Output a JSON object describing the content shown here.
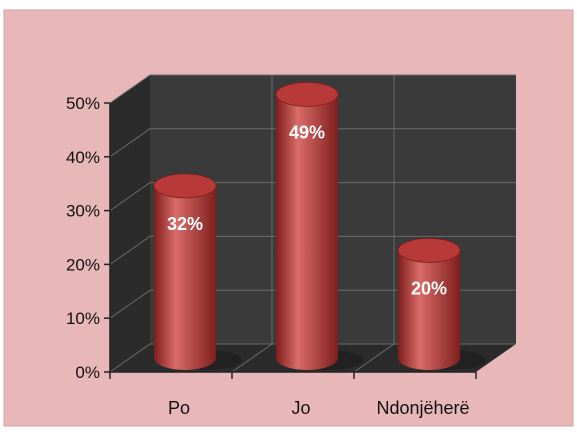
{
  "chart_data": {
    "type": "bar",
    "title": "",
    "xlabel": "",
    "ylabel": "",
    "categories": [
      "Po",
      "Jo",
      "Ndonjëherë"
    ],
    "values": [
      32,
      49,
      20
    ],
    "data_labels": [
      "32%",
      "49%",
      "20%"
    ],
    "ylim": [
      0,
      50
    ],
    "yticks": [
      0,
      10,
      20,
      30,
      40,
      50
    ],
    "ytick_labels": [
      "0%",
      "10%",
      "20%",
      "30%",
      "40%",
      "50%"
    ],
    "grid": true,
    "style": "3d-cylinder",
    "colors": {
      "background": "#e8b8b8",
      "plot_wall": "#3a3a3a",
      "plot_floor": "#2b2b2b",
      "grid": "#6b6b6b",
      "bar": "#b73a38",
      "bar_dark": "#7e1f1d",
      "bar_light": "#d96b68"
    }
  }
}
